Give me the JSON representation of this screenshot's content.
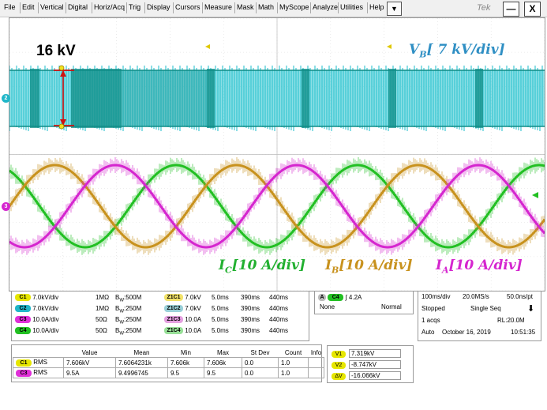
{
  "menu": {
    "items": [
      "File",
      "Edit",
      "Vertical",
      "Digital",
      "Horiz/Acq",
      "Trig",
      "Display",
      "Cursors",
      "Measure",
      "Mask",
      "Math",
      "MyScope",
      "Analyze",
      "Utilities",
      "Help"
    ],
    "dropdown_glyph": "▼",
    "brand": "Tek",
    "minimize_glyph": "—",
    "close_glyph": "X"
  },
  "scope": {
    "annotation_voltage": "16 kV",
    "label_vb": "V",
    "label_vb_sub": "B",
    "label_vb_scale": "[ 7 kV/div]",
    "label_ic": "I",
    "label_ic_sub": "C",
    "label_ic_scale": "[10 A/div]",
    "label_ib": "I",
    "label_ib_sub": "B",
    "label_ib_scale": "[10 A/div]",
    "label_ia": "I",
    "label_ia_sub": "A",
    "label_ia_scale": "[10 A/div]",
    "marker_ch2": "2",
    "marker_ch3": "3",
    "colors": {
      "vb": "#2ec4d0",
      "vb_dark": "#0e8c86",
      "ic": "#22c023",
      "ib": "#c8921e",
      "ia": "#d526cf"
    }
  },
  "channels": [
    {
      "badge": "C1",
      "scale": "7.0kV/div",
      "imp": "1MΩ",
      "bw": "B",
      "bw_sub": "W",
      "bw_val": ":500M"
    },
    {
      "badge": "C2",
      "scale": "7.0kV/div",
      "imp": "1MΩ",
      "bw": "B",
      "bw_sub": "W",
      "bw_val": ":250M"
    },
    {
      "badge": "C3",
      "scale": "10.0A/div",
      "imp": "50Ω",
      "bw": "B",
      "bw_sub": "W",
      "bw_val": ":250M"
    },
    {
      "badge": "C4",
      "scale": "10.0A/div",
      "imp": "50Ω",
      "bw": "B",
      "bw_sub": "W",
      "bw_val": ":250M"
    }
  ],
  "zoom": [
    {
      "badge": "Z1C1",
      "scale": "7.0kV",
      "time": "5.0ms",
      "pos": "390ms",
      "end": "440ms"
    },
    {
      "badge": "Z1C2",
      "scale": "7.0kV",
      "time": "5.0ms",
      "pos": "390ms",
      "end": "440ms"
    },
    {
      "badge": "Z1C3",
      "scale": "10.0A",
      "time": "5.0ms",
      "pos": "390ms",
      "end": "440ms"
    },
    {
      "badge": "Z1C4",
      "scale": "10.0A",
      "time": "5.0ms",
      "pos": "390ms",
      "end": "440ms"
    }
  ],
  "trigger": {
    "mode_badge": "A",
    "channel_badge": "C4",
    "slope_glyph": "∫",
    "level": "4.2A",
    "coupling": "None",
    "mode": "Normal"
  },
  "acquisition": {
    "timebase": "100ms/div",
    "sample_rate": "20.0MS/s",
    "resolution": "50.0ns/pt",
    "state": "Stopped",
    "sequence": "Single Seq",
    "acqs": "1 acqs",
    "record_length": "RL:20.0M",
    "trigger_mode": "Auto",
    "date": "October 16, 2019",
    "time": "10:51:35",
    "arrow_glyph": "⬇"
  },
  "measurements": {
    "headers": [
      "Value",
      "Mean",
      "Min",
      "Max",
      "St Dev",
      "Count",
      "Info"
    ],
    "rows": [
      {
        "badge": "C1",
        "type": "RMS",
        "value": "7.606kV",
        "mean": "7.6064231k",
        "min": "7.606k",
        "max": "7.606k",
        "stdev": "0.0",
        "count": "1.0",
        "info": ""
      },
      {
        "badge": "C3",
        "type": "RMS",
        "value": "9.5A",
        "mean": "9.4996745",
        "min": "9.5",
        "max": "9.5",
        "stdev": "0.0",
        "count": "1.0",
        "info": ""
      }
    ]
  },
  "cursors": [
    {
      "badge": "V1",
      "value": "7.319kV"
    },
    {
      "badge": "V2",
      "value": "-8.747kV"
    },
    {
      "badge": "ΔV",
      "value": "-16.066kV"
    }
  ]
}
